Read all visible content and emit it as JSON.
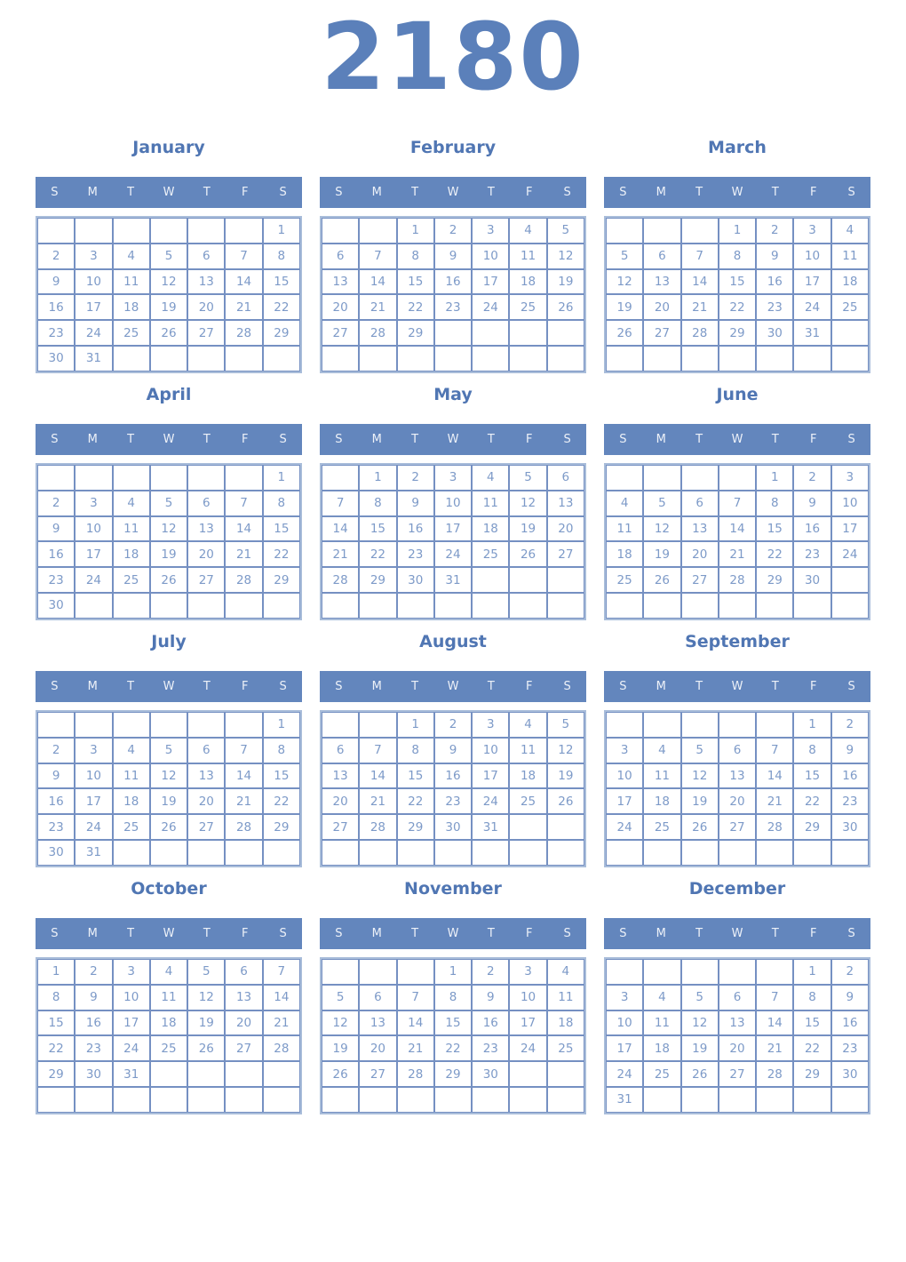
{
  "year": "2180",
  "weekdays": [
    "S",
    "M",
    "T",
    "W",
    "T",
    "F",
    "S"
  ],
  "colors": {
    "accent": "#5b80ba",
    "month_title": "#5076b3",
    "header_bg": "#6386bd",
    "header_text": "#edf1f8",
    "date_text": "#7d9ac8",
    "grid_line": "#7590c2",
    "outer_border": "#a9bdda",
    "page_bg": "#ffffff"
  },
  "months": [
    {
      "name": "January",
      "weeks": [
        [
          "",
          "",
          "",
          "",
          "",
          "",
          "1"
        ],
        [
          "2",
          "3",
          "4",
          "5",
          "6",
          "7",
          "8"
        ],
        [
          "9",
          "10",
          "11",
          "12",
          "13",
          "14",
          "15"
        ],
        [
          "16",
          "17",
          "18",
          "19",
          "20",
          "21",
          "22"
        ],
        [
          "23",
          "24",
          "25",
          "26",
          "27",
          "28",
          "29"
        ],
        [
          "30",
          "31",
          "",
          "",
          "",
          "",
          ""
        ]
      ]
    },
    {
      "name": "February",
      "weeks": [
        [
          "",
          "",
          "1",
          "2",
          "3",
          "4",
          "5"
        ],
        [
          "6",
          "7",
          "8",
          "9",
          "10",
          "11",
          "12"
        ],
        [
          "13",
          "14",
          "15",
          "16",
          "17",
          "18",
          "19"
        ],
        [
          "20",
          "21",
          "22",
          "23",
          "24",
          "25",
          "26"
        ],
        [
          "27",
          "28",
          "29",
          "",
          "",
          "",
          ""
        ],
        [
          "",
          "",
          "",
          "",
          "",
          "",
          ""
        ]
      ]
    },
    {
      "name": "March",
      "weeks": [
        [
          "",
          "",
          "",
          "1",
          "2",
          "3",
          "4"
        ],
        [
          "5",
          "6",
          "7",
          "8",
          "9",
          "10",
          "11"
        ],
        [
          "12",
          "13",
          "14",
          "15",
          "16",
          "17",
          "18"
        ],
        [
          "19",
          "20",
          "21",
          "22",
          "23",
          "24",
          "25"
        ],
        [
          "26",
          "27",
          "28",
          "29",
          "30",
          "31",
          ""
        ],
        [
          "",
          "",
          "",
          "",
          "",
          "",
          ""
        ]
      ]
    },
    {
      "name": "April",
      "weeks": [
        [
          "",
          "",
          "",
          "",
          "",
          "",
          "1"
        ],
        [
          "2",
          "3",
          "4",
          "5",
          "6",
          "7",
          "8"
        ],
        [
          "9",
          "10",
          "11",
          "12",
          "13",
          "14",
          "15"
        ],
        [
          "16",
          "17",
          "18",
          "19",
          "20",
          "21",
          "22"
        ],
        [
          "23",
          "24",
          "25",
          "26",
          "27",
          "28",
          "29"
        ],
        [
          "30",
          "",
          "",
          "",
          "",
          "",
          ""
        ]
      ]
    },
    {
      "name": "May",
      "weeks": [
        [
          "",
          "1",
          "2",
          "3",
          "4",
          "5",
          "6"
        ],
        [
          "7",
          "8",
          "9",
          "10",
          "11",
          "12",
          "13"
        ],
        [
          "14",
          "15",
          "16",
          "17",
          "18",
          "19",
          "20"
        ],
        [
          "21",
          "22",
          "23",
          "24",
          "25",
          "26",
          "27"
        ],
        [
          "28",
          "29",
          "30",
          "31",
          "",
          "",
          ""
        ],
        [
          "",
          "",
          "",
          "",
          "",
          "",
          ""
        ]
      ]
    },
    {
      "name": "June",
      "weeks": [
        [
          "",
          "",
          "",
          "",
          "1",
          "2",
          "3"
        ],
        [
          "4",
          "5",
          "6",
          "7",
          "8",
          "9",
          "10"
        ],
        [
          "11",
          "12",
          "13",
          "14",
          "15",
          "16",
          "17"
        ],
        [
          "18",
          "19",
          "20",
          "21",
          "22",
          "23",
          "24"
        ],
        [
          "25",
          "26",
          "27",
          "28",
          "29",
          "30",
          ""
        ],
        [
          "",
          "",
          "",
          "",
          "",
          "",
          ""
        ]
      ]
    },
    {
      "name": "July",
      "weeks": [
        [
          "",
          "",
          "",
          "",
          "",
          "",
          "1"
        ],
        [
          "2",
          "3",
          "4",
          "5",
          "6",
          "7",
          "8"
        ],
        [
          "9",
          "10",
          "11",
          "12",
          "13",
          "14",
          "15"
        ],
        [
          "16",
          "17",
          "18",
          "19",
          "20",
          "21",
          "22"
        ],
        [
          "23",
          "24",
          "25",
          "26",
          "27",
          "28",
          "29"
        ],
        [
          "30",
          "31",
          "",
          "",
          "",
          "",
          ""
        ]
      ]
    },
    {
      "name": "August",
      "weeks": [
        [
          "",
          "",
          "1",
          "2",
          "3",
          "4",
          "5"
        ],
        [
          "6",
          "7",
          "8",
          "9",
          "10",
          "11",
          "12"
        ],
        [
          "13",
          "14",
          "15",
          "16",
          "17",
          "18",
          "19"
        ],
        [
          "20",
          "21",
          "22",
          "23",
          "24",
          "25",
          "26"
        ],
        [
          "27",
          "28",
          "29",
          "30",
          "31",
          "",
          ""
        ],
        [
          "",
          "",
          "",
          "",
          "",
          "",
          ""
        ]
      ]
    },
    {
      "name": "September",
      "weeks": [
        [
          "",
          "",
          "",
          "",
          "",
          "1",
          "2"
        ],
        [
          "3",
          "4",
          "5",
          "6",
          "7",
          "8",
          "9"
        ],
        [
          "10",
          "11",
          "12",
          "13",
          "14",
          "15",
          "16"
        ],
        [
          "17",
          "18",
          "19",
          "20",
          "21",
          "22",
          "23"
        ],
        [
          "24",
          "25",
          "26",
          "27",
          "28",
          "29",
          "30"
        ],
        [
          "",
          "",
          "",
          "",
          "",
          "",
          ""
        ]
      ]
    },
    {
      "name": "October",
      "weeks": [
        [
          "1",
          "2",
          "3",
          "4",
          "5",
          "6",
          "7"
        ],
        [
          "8",
          "9",
          "10",
          "11",
          "12",
          "13",
          "14"
        ],
        [
          "15",
          "16",
          "17",
          "18",
          "19",
          "20",
          "21"
        ],
        [
          "22",
          "23",
          "24",
          "25",
          "26",
          "27",
          "28"
        ],
        [
          "29",
          "30",
          "31",
          "",
          "",
          "",
          ""
        ],
        [
          "",
          "",
          "",
          "",
          "",
          "",
          ""
        ]
      ]
    },
    {
      "name": "November",
      "weeks": [
        [
          "",
          "",
          "",
          "1",
          "2",
          "3",
          "4"
        ],
        [
          "5",
          "6",
          "7",
          "8",
          "9",
          "10",
          "11"
        ],
        [
          "12",
          "13",
          "14",
          "15",
          "16",
          "17",
          "18"
        ],
        [
          "19",
          "20",
          "21",
          "22",
          "23",
          "24",
          "25"
        ],
        [
          "26",
          "27",
          "28",
          "29",
          "30",
          "",
          ""
        ],
        [
          "",
          "",
          "",
          "",
          "",
          "",
          ""
        ]
      ]
    },
    {
      "name": "December",
      "weeks": [
        [
          "",
          "",
          "",
          "",
          "",
          "1",
          "2"
        ],
        [
          "3",
          "4",
          "5",
          "6",
          "7",
          "8",
          "9"
        ],
        [
          "10",
          "11",
          "12",
          "13",
          "14",
          "15",
          "16"
        ],
        [
          "17",
          "18",
          "19",
          "20",
          "21",
          "22",
          "23"
        ],
        [
          "24",
          "25",
          "26",
          "27",
          "28",
          "29",
          "30"
        ],
        [
          "31",
          "",
          "",
          "",
          "",
          "",
          ""
        ]
      ]
    }
  ]
}
